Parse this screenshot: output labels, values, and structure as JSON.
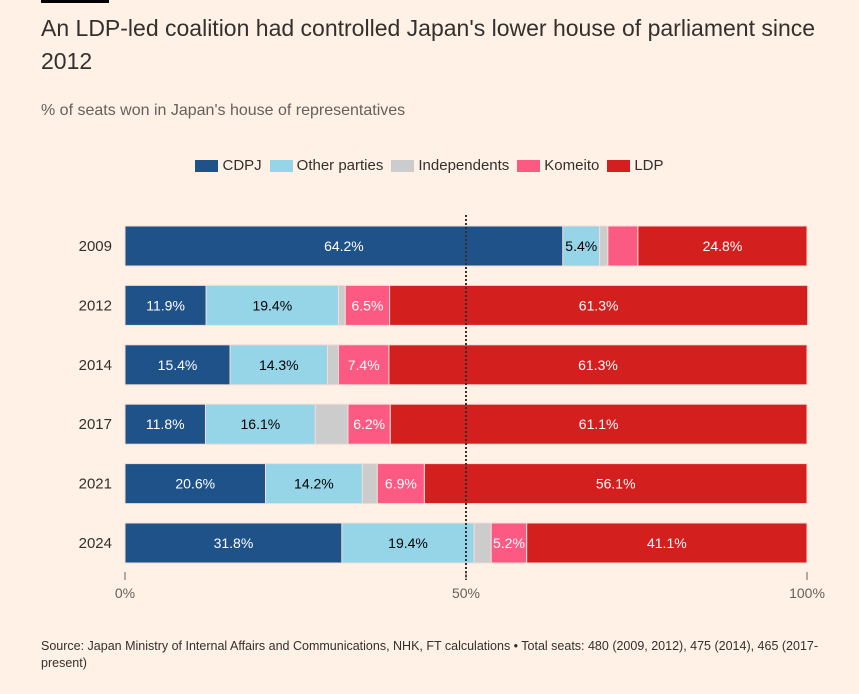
{
  "title": "An LDP-led coalition had controlled Japan's lower house of parliament since 2012",
  "subtitle": "% of seats won in Japan's house of representatives",
  "source": "Source: Japan Ministry of Internal Affairs and Communications, NHK, FT calculations • Total seats: 480 (2009, 2012), 475 (2014), 465 (2017-present)",
  "chart_data": {
    "type": "bar",
    "orientation": "horizontal",
    "stacked": true,
    "categories": [
      "2009",
      "2012",
      "2014",
      "2017",
      "2021",
      "2024"
    ],
    "series": [
      {
        "name": "CDPJ",
        "color": "#1f5289",
        "values": [
          64.2,
          11.9,
          15.4,
          11.8,
          20.6,
          31.8
        ],
        "labels": [
          "64.2%",
          "11.9%",
          "15.4%",
          "11.8%",
          "20.6%",
          "31.8%"
        ]
      },
      {
        "name": "Other parties",
        "color": "#96d4e8",
        "values": [
          5.4,
          19.4,
          14.3,
          16.1,
          14.2,
          19.4
        ],
        "labels": [
          "5.4%",
          "19.4%",
          "14.3%",
          "16.1%",
          "14.2%",
          "19.4%"
        ]
      },
      {
        "name": "Independents",
        "color": "#cccccc",
        "values": [
          1.2,
          1.0,
          1.6,
          4.8,
          2.2,
          2.5
        ],
        "labels": [
          "",
          "",
          "",
          "",
          "",
          ""
        ]
      },
      {
        "name": "Komeito",
        "color": "#fc5a82",
        "values": [
          4.4,
          6.5,
          7.4,
          6.2,
          6.9,
          5.2
        ],
        "labels": [
          "",
          "6.5%",
          "7.4%",
          "6.2%",
          "6.9%",
          "5.2%"
        ]
      },
      {
        "name": "LDP",
        "color": "#d41f1f",
        "values": [
          24.8,
          61.3,
          61.3,
          61.1,
          56.1,
          41.1
        ],
        "labels": [
          "24.8%",
          "61.3%",
          "61.3%",
          "61.1%",
          "56.1%",
          "41.1%"
        ]
      }
    ],
    "xlim": [
      0,
      100
    ],
    "xticks": [
      "0%",
      "50%",
      "100%"
    ],
    "reference_line": 50,
    "legend_position": "top-center",
    "grid": false
  }
}
